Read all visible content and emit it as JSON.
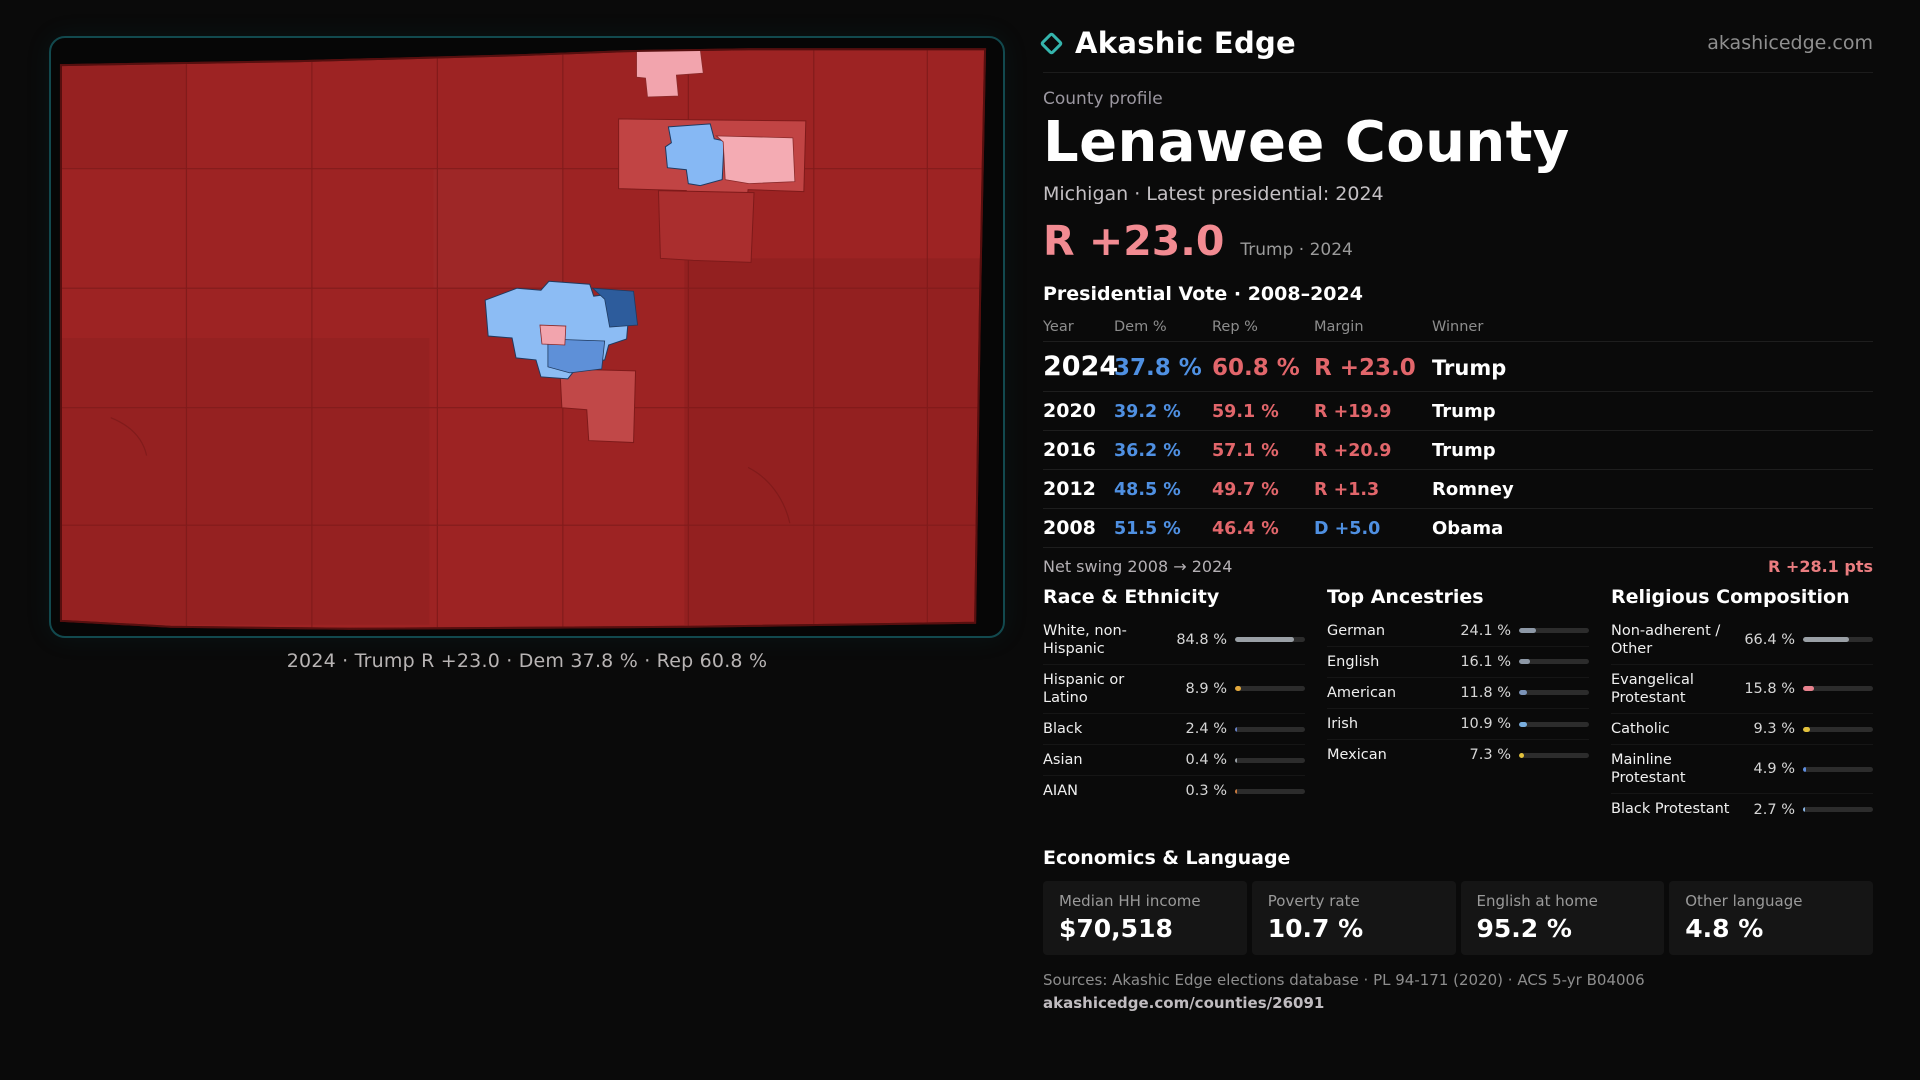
{
  "colors": {
    "dem_blue": "#4f90e2",
    "rep_red": "#e2666b",
    "headline_pink": "#f28b92",
    "swing_red": "#ea7d80",
    "map_border_teal": "#12494e",
    "brand_teal": "#35b5ad"
  },
  "brand": {
    "name": "Akashic Edge",
    "site": "akashicedge.com"
  },
  "profile": {
    "eyebrow": "County profile",
    "title": "Lenawee County",
    "subtitle": "Michigan · Latest presidential: 2024",
    "headline_margin": "R +23.0",
    "headline_note": "Trump · 2024"
  },
  "map": {
    "caption": "2024 · Trump R +23.0 · Dem 37.8 % · Rep 60.8 %"
  },
  "vote": {
    "heading": "Presidential Vote · 2008–2024",
    "columns": [
      "Year",
      "Dem %",
      "Rep %",
      "Margin",
      "Winner"
    ],
    "rows": [
      {
        "year": "2024",
        "dem": "37.8 %",
        "rep": "60.8 %",
        "margin": "R +23.0",
        "margin_color": "#e2666b",
        "winner": "Trump"
      },
      {
        "year": "2020",
        "dem": "39.2 %",
        "rep": "59.1 %",
        "margin": "R +19.9",
        "margin_color": "#e2666b",
        "winner": "Trump"
      },
      {
        "year": "2016",
        "dem": "36.2 %",
        "rep": "57.1 %",
        "margin": "R +20.9",
        "margin_color": "#e2666b",
        "winner": "Trump"
      },
      {
        "year": "2012",
        "dem": "48.5 %",
        "rep": "49.7 %",
        "margin": "R +1.3",
        "margin_color": "#e2666b",
        "winner": "Romney"
      },
      {
        "year": "2008",
        "dem": "51.5 %",
        "rep": "46.4 %",
        "margin": "D +5.0",
        "margin_color": "#4f90e2",
        "winner": "Obama"
      }
    ],
    "net_swing_label": "Net swing 2008 → 2024",
    "net_swing_value": "R +28.1 pts"
  },
  "demographics": {
    "race": {
      "heading": "Race & Ethnicity",
      "rows": [
        {
          "label": "White, non-Hispanic",
          "value": "84.8 %",
          "pct": 84.8,
          "color": "#9aa0a6"
        },
        {
          "label": "Hispanic or Latino",
          "value": "8.9 %",
          "pct": 8.9,
          "color": "#e3a83c"
        },
        {
          "label": "Black",
          "value": "2.4 %",
          "pct": 2.4,
          "color": "#667fc4"
        },
        {
          "label": "Asian",
          "value": "0.4 %",
          "pct": 0.4,
          "color": "#9aa0a6"
        },
        {
          "label": "AIAN",
          "value": "0.3 %",
          "pct": 0.3,
          "color": "#c97a3e"
        }
      ]
    },
    "ancestries": {
      "heading": "Top Ancestries",
      "rows": [
        {
          "label": "German",
          "value": "24.1 %",
          "pct": 24.1,
          "color": "#8d98a6"
        },
        {
          "label": "English",
          "value": "16.1 %",
          "pct": 16.1,
          "color": "#8d98a6"
        },
        {
          "label": "American",
          "value": "11.8 %",
          "pct": 11.8,
          "color": "#7c94b8"
        },
        {
          "label": "Irish",
          "value": "10.9 %",
          "pct": 10.9,
          "color": "#79aede"
        },
        {
          "label": "Mexican",
          "value": "7.3 %",
          "pct": 7.3,
          "color": "#e3c23c"
        }
      ]
    },
    "religion": {
      "heading": "Religious Composition",
      "rows": [
        {
          "label": "Non-adherent / Other",
          "value": "66.4 %",
          "pct": 66.4,
          "color": "#9aa0a6"
        },
        {
          "label": "Evangelical Protestant",
          "value": "15.8 %",
          "pct": 15.8,
          "color": "#e8828e"
        },
        {
          "label": "Catholic",
          "value": "9.3 %",
          "pct": 9.3,
          "color": "#e3c23c"
        },
        {
          "label": "Mainline Protestant",
          "value": "4.9 %",
          "pct": 4.9,
          "color": "#5f8ee0"
        },
        {
          "label": "Black Protestant",
          "value": "2.7 %",
          "pct": 2.7,
          "color": "#8ab6e6"
        }
      ]
    }
  },
  "economics": {
    "heading": "Economics & Language",
    "stats": [
      {
        "label": "Median HH income",
        "value": "$70,518"
      },
      {
        "label": "Poverty rate",
        "value": "10.7 %"
      },
      {
        "label": "English at home",
        "value": "95.2 %"
      },
      {
        "label": "Other language",
        "value": "4.8 %"
      }
    ]
  },
  "footer": {
    "sources": "Sources: Akashic Edge elections database · PL 94-171 (2020) · ACS 5-yr B04006",
    "permalink": "akashicedge.com/counties/26091"
  }
}
